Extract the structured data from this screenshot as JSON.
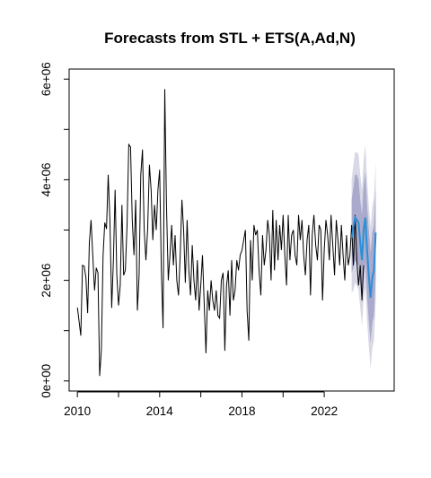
{
  "chart_data": {
    "type": "line",
    "title": "Forecasts from STL +  ETS(A,Ad,N)",
    "xlabel": "",
    "ylabel": "",
    "xlim": [
      2009.6,
      2025.4
    ],
    "ylim": [
      -200000,
      6200000
    ],
    "x_ticks": [
      2010,
      2014,
      2018,
      2022
    ],
    "x_tick_labels": [
      "2010",
      "2014",
      "2018",
      "2022"
    ],
    "y_ticks": [
      0,
      2000000,
      4000000,
      6000000
    ],
    "y_tick_labels": [
      "0e+00",
      "2e+06",
      "4e+06",
      "6e+06"
    ],
    "grid": false,
    "legend": "none",
    "colors": {
      "history": "#000000",
      "forecast_mean": "#2a8fd6",
      "interval_80": "#aaaacc",
      "interval_95": "#d8d8e6"
    },
    "series": [
      {
        "role": "history",
        "start": 2010.0,
        "frequency": 12,
        "values": [
          1460000,
          1180000,
          900000,
          2300000,
          2280000,
          2050000,
          1350000,
          2750000,
          3200000,
          2500000,
          1800000,
          2250000,
          2150000,
          100000,
          620000,
          2500000,
          3150000,
          3020000,
          4100000,
          3200000,
          1450000,
          2400000,
          3800000,
          2100000,
          1500000,
          1900000,
          3500000,
          2100000,
          2200000,
          3100000,
          4700000,
          4650000,
          3200000,
          2500000,
          3600000,
          1400000,
          2100000,
          4100000,
          4600000,
          3000000,
          2400000,
          3000000,
          4300000,
          3800000,
          2800000,
          3500000,
          3000000,
          3800000,
          4200000,
          2200000,
          1050000,
          5800000,
          3500000,
          2000000,
          2500000,
          3100000,
          2300000,
          2900000,
          2000000,
          1700000,
          2500000,
          3600000,
          3000000,
          1950000,
          3200000,
          2200000,
          1700000,
          2700000,
          2000000,
          1600000,
          2400000,
          1400000,
          1900000,
          2500000,
          1500000,
          550000,
          1800000,
          1400000,
          2000000,
          1600000,
          1400000,
          1800000,
          1300000,
          1250000,
          2000000,
          2150000,
          600000,
          1900000,
          2200000,
          1300000,
          2400000,
          1600000,
          1800000,
          2400000,
          2200000,
          2500000,
          2600000,
          2800000,
          3000000,
          1400000,
          800000,
          2800000,
          2000000,
          3100000,
          2900000,
          3000000,
          2200000,
          1700000,
          2900000,
          2300000,
          2600000,
          3200000,
          2900000,
          2000000,
          3400000,
          2200000,
          3200000,
          2400000,
          3100000,
          2600000,
          3300000,
          2500000,
          1900000,
          3300000,
          2400000,
          2900000,
          3000000,
          2500000,
          2300000,
          3300000,
          2800000,
          3200000,
          2500000,
          2100000,
          2800000,
          3100000,
          1700000,
          2900000,
          3300000,
          2700000,
          2400000,
          3100000,
          3000000,
          1600000,
          2600000,
          3200000,
          2900000,
          2400000,
          3300000,
          2700000,
          2100000,
          3200000,
          2800000,
          2300000,
          3100000,
          2500000,
          2000000,
          2900000,
          2300000,
          2500000,
          3100000,
          2300000,
          3300000,
          2400000,
          1900000,
          2300000,
          1600000,
          2300000
        ]
      },
      {
        "role": "forecast_mean",
        "start": 2023.3333,
        "frequency": 12,
        "values": [
          2850000,
          3050000,
          3250000,
          3200000,
          3150000,
          2750000,
          2400000,
          3000000,
          3250000,
          2600000,
          2100000,
          1650000,
          2050000,
          2200000,
          2950000
        ],
        "lower_80": [
          2150000,
          2250000,
          2400000,
          2350000,
          2300000,
          1900000,
          1550000,
          2100000,
          2350000,
          1700000,
          1200000,
          750000,
          1150000,
          1300000,
          2050000
        ],
        "upper_80": [
          3600000,
          3850000,
          4100000,
          4100000,
          4000000,
          3600000,
          3300000,
          3900000,
          4150000,
          3500000,
          3000000,
          2550000,
          2950000,
          3100000,
          3850000
        ],
        "lower_95": [
          1750000,
          1800000,
          1950000,
          1900000,
          1800000,
          1450000,
          1100000,
          1600000,
          1850000,
          1200000,
          700000,
          250000,
          650000,
          800000,
          1550000
        ],
        "upper_95": [
          4000000,
          4300000,
          4550000,
          4550000,
          4500000,
          4100000,
          3800000,
          4400000,
          4700000,
          4000000,
          3500000,
          3050000,
          3450000,
          3650000,
          4350000
        ]
      }
    ]
  }
}
